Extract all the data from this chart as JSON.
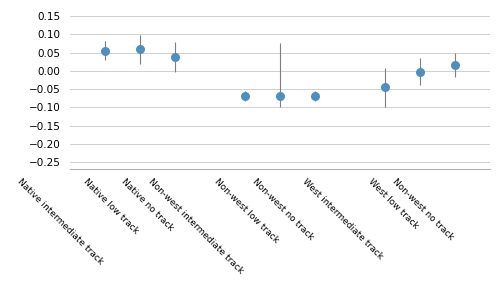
{
  "x_labels": [
    "Native intermediate track",
    "Native low track",
    "Native no track",
    "Non-west intermediate track",
    "Non-west low track",
    "Non-west no track",
    "West intermediate track",
    "West low track",
    "Non-west no track"
  ],
  "means": [
    0.053,
    0.06,
    0.038,
    -0.07,
    -0.068,
    -0.07,
    -0.045,
    -0.002,
    0.015
  ],
  "ci_lower": [
    0.03,
    0.02,
    -0.003,
    -0.083,
    -0.1,
    -0.083,
    -0.098,
    -0.038,
    -0.018
  ],
  "ci_upper": [
    0.083,
    0.098,
    0.08,
    -0.055,
    0.075,
    -0.055,
    0.008,
    0.035,
    0.048
  ],
  "x_positions": [
    1,
    2,
    3,
    5,
    6,
    7,
    9,
    10,
    11
  ],
  "dot_color": "#4e8fbe",
  "line_color": "#7f7f7f",
  "ylim": [
    -0.27,
    0.17
  ],
  "yticks": [
    0.15,
    0.1,
    0.05,
    0,
    -0.05,
    -0.1,
    -0.15,
    -0.2,
    -0.25
  ],
  "grid_color": "#d0d0d0",
  "background_color": "#ffffff",
  "figsize": [
    5.0,
    2.92
  ],
  "dpi": 100
}
